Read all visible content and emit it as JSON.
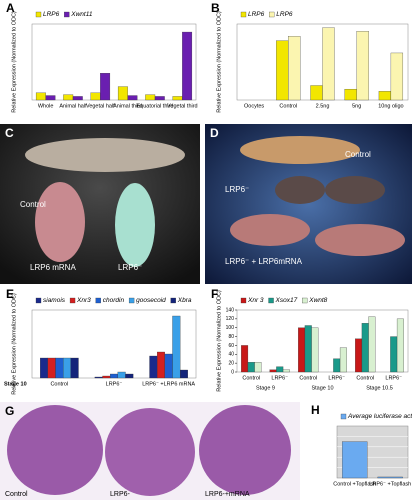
{
  "chart_data": [
    {
      "type": "bar",
      "panel": "A",
      "y_label": "Relative Expression (Normalized to ODC)",
      "categories": [
        "Whole",
        "Animal half",
        "Vegetal half",
        "Animal third",
        "Equatorial third",
        "Vegetal third"
      ],
      "series": [
        {
          "name": "LRP6",
          "color": "#f2e600",
          "values": [
            0.08,
            0.06,
            0.08,
            0.15,
            0.06,
            0.04
          ]
        },
        {
          "name": "Xwnt11",
          "color": "#6a1fb0",
          "values": [
            0.05,
            0.04,
            0.3,
            0.05,
            0.04,
            0.76
          ]
        }
      ],
      "ylim": [
        0,
        0.85
      ]
    },
    {
      "type": "bar",
      "panel": "B",
      "y_label": "Relative Expression (Normalized to ODC)",
      "categories": [
        "Oocytes",
        "Control",
        "2.5ng",
        "5ng",
        "10ng oligo"
      ],
      "series": [
        {
          "name": "LRP6",
          "color": "#f2e600",
          "values": [
            0,
            0.82,
            0.2,
            0.15,
            0.12
          ]
        },
        {
          "name": "LRP6",
          "color": "#fbf5b0",
          "values": [
            0,
            0.88,
            1.0,
            0.95,
            0.65
          ]
        }
      ],
      "ylim": [
        0,
        1.05
      ]
    },
    {
      "type": "bar",
      "panel": "E",
      "y_label": "Relative Expression (Normalized to ODC)",
      "stage_label": "Stage 10",
      "categories": [
        "Control",
        "LRP6⁻",
        "LRP6⁻ +LRP6 mRNA"
      ],
      "series": [
        {
          "name": "siamois",
          "color": "#1a2a8c",
          "values": [
            1.0,
            0.05,
            1.1
          ]
        },
        {
          "name": "Xnr3",
          "color": "#d42020",
          "values": [
            1.0,
            0.1,
            1.3
          ]
        },
        {
          "name": "chordin",
          "color": "#1e5fd0",
          "values": [
            1.0,
            0.2,
            1.2
          ]
        },
        {
          "name": "goosecoid",
          "color": "#3aa0e8",
          "values": [
            1.0,
            0.3,
            3.1
          ]
        },
        {
          "name": "Xbra",
          "color": "#14247a",
          "values": [
            1.0,
            0.2,
            0.4
          ]
        }
      ],
      "ylim": [
        0,
        3.4
      ]
    },
    {
      "type": "bar",
      "panel": "F",
      "y_label": "Relative Expression (Normalized to ODC)",
      "categories": [
        "Control",
        "LRP6⁻",
        "Control",
        "LRP6⁻",
        "Control",
        "LRP6⁻"
      ],
      "stages": [
        "Stage 9",
        "Stage 10",
        "Stage 10.5"
      ],
      "series": [
        {
          "name": "Xnr 3",
          "color": "#c81818",
          "values": [
            60,
            5,
            100,
            0,
            75,
            0
          ]
        },
        {
          "name": "Xsox17",
          "color": "#1a9a8a",
          "values": [
            22,
            12,
            105,
            30,
            110,
            80
          ]
        },
        {
          "name": "Xwnt8",
          "color": "#d8f0d0",
          "values": [
            22,
            5,
            100,
            55,
            125,
            120
          ]
        }
      ],
      "ylim": [
        0,
        140
      ],
      "yticks": [
        0,
        20,
        40,
        60,
        80,
        100,
        120,
        140
      ]
    },
    {
      "type": "bar",
      "panel": "H",
      "y_label": "",
      "categories": [
        "Control +Topflash",
        "LRP6⁻ +Topflash"
      ],
      "series": [
        {
          "name": "Average luciferase activity",
          "color": "#6aaaf0",
          "values": [
            0.7,
            0.02
          ]
        }
      ],
      "ylim": [
        0,
        1
      ],
      "grid": true
    }
  ],
  "image_panels": [
    {
      "panel": "C",
      "labels": [
        "Control",
        "LRP6 mRNA",
        "LRP6⁻"
      ]
    },
    {
      "panel": "D",
      "labels": [
        "Control",
        "LRP6⁻",
        "LRP6⁻ + LRP6mRNA"
      ]
    },
    {
      "panel": "G",
      "labels": [
        "Control",
        "LRP6-",
        "LRP6-+mRNA"
      ]
    }
  ]
}
